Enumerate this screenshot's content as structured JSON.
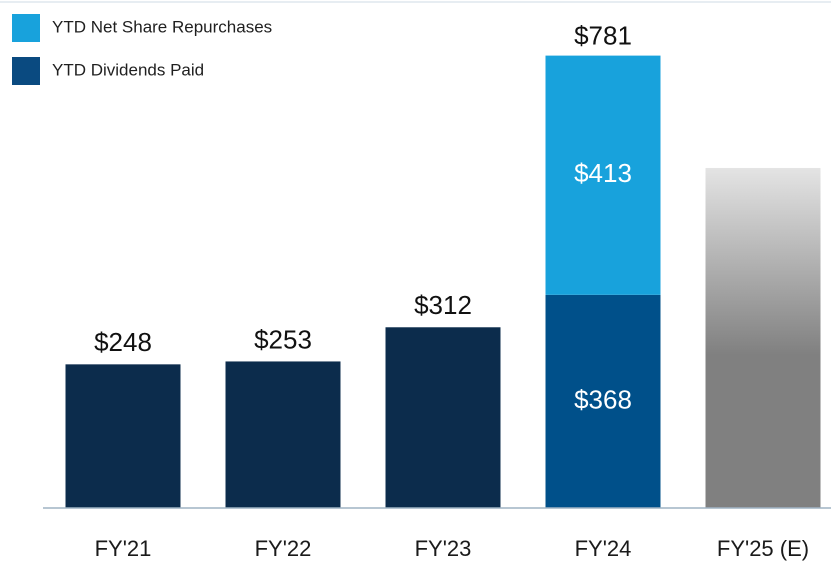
{
  "chart_data": {
    "type": "stacked_bar",
    "categories": [
      "FY'21",
      "FY'22",
      "FY'23",
      "FY'24",
      "FY'25 (E)"
    ],
    "series": [
      {
        "name": "YTD Dividends Paid",
        "color": "#0a4a80",
        "colors": [
          "#0c2c4c",
          "#0c2c4c",
          "#0c2c4c",
          "#00508a",
          null
        ],
        "values": [
          248,
          253,
          312,
          368,
          null
        ],
        "value_labels": [
          "$248",
          "$253",
          "$312",
          "$368",
          null
        ]
      },
      {
        "name": "YTD Net Share Repurchases",
        "color": "#18a2dc",
        "values": [
          null,
          null,
          null,
          413,
          null
        ],
        "value_labels": [
          null,
          null,
          null,
          "$413",
          null
        ]
      }
    ],
    "totals": [
      null,
      null,
      null,
      781,
      null
    ],
    "total_labels": [
      null,
      null,
      null,
      "$781",
      null
    ],
    "estimated_values": [
      null,
      null,
      null,
      null,
      587
    ],
    "estimated_colors": [
      "#e4e4e4",
      "#808080"
    ],
    "ylim": [
      0,
      877
    ]
  }
}
